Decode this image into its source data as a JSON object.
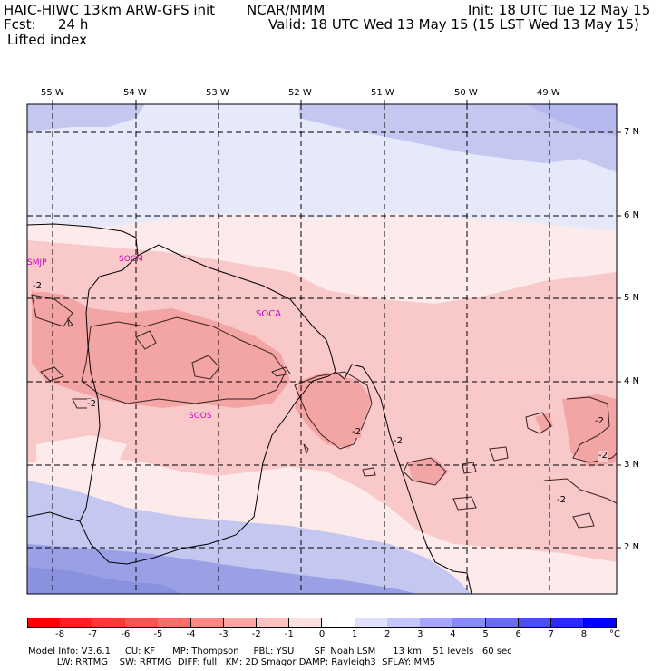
{
  "header": {
    "model": "HAIC-HIWC 13km ARW-GFS init",
    "org": "NCAR/MMM",
    "init": "Init: 18 UTC Tue 12 May 15",
    "fcst_label": "Fcst:",
    "fcst_value": "24 h",
    "valid": "Valid: 18 UTC Wed 13 May 15 (15 LST Wed 13 May 15)",
    "field": "Lifted index"
  },
  "map": {
    "lon_labels": [
      "55 W",
      "54 W",
      "53 W",
      "52 W",
      "51 W",
      "50 W",
      "49 W"
    ],
    "lat_labels": [
      "7 N",
      "6 N",
      "5 N",
      "4 N",
      "3 N",
      "2 N"
    ],
    "stations": [
      "SMJP",
      "SOCM",
      "SOCA",
      "SOOS"
    ],
    "contour_label": "-2",
    "colors": {
      "pos_light": "#e6e9fa",
      "pos_med": "#c4c8f0",
      "pos_strong": "#9aa0e6",
      "neg_light": "#fdeaea",
      "neg_med": "#f9c9c9",
      "neg_strong": "#f3a4a4",
      "station": "#cc00cc"
    }
  },
  "colorbar": {
    "labels": [
      "-8",
      "-7",
      "-6",
      "-5",
      "-4",
      "-3",
      "-2",
      "-1",
      "0",
      "1",
      "2",
      "3",
      "4",
      "5",
      "6",
      "7",
      "8"
    ],
    "unit": "°C",
    "colors": [
      "#ff0000",
      "#ff2020",
      "#ff3838",
      "#ff5252",
      "#ff6c6c",
      "#ff8686",
      "#ffa3a3",
      "#ffc0c0",
      "#ffe0e0",
      "#ffffff",
      "#e0e0ff",
      "#c4c4ff",
      "#a6a6ff",
      "#8888ff",
      "#6a6aff",
      "#4a4aff",
      "#2a2aff",
      "#0000ff"
    ]
  },
  "footer": {
    "line1": "Model Info: V3.6.1     CU: KF      MP: Thompson     PBL: YSU       SF: Noah LSM      13 km    51 levels   60 sec",
    "line2": "          LW: RRTMG    SW: RRTMG  DIFF: full   KM: 2D Smagor DAMP: Rayleigh3  SFLAY: MM5"
  }
}
